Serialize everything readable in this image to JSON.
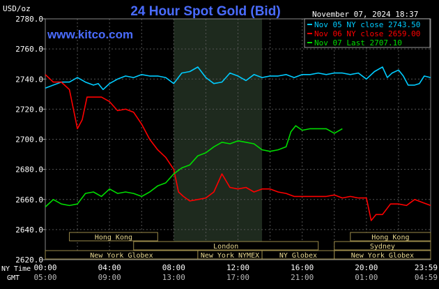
{
  "header": {
    "title": "24 Hour Spot Gold (Bid)",
    "datetime": "November 07, 2024 18:37",
    "unit_label": "USD/oz",
    "watermark": "www.kitco.com"
  },
  "legend": {
    "placement": "top-right",
    "entries": [
      {
        "label": "Nov 05 NY close 2743.50",
        "color": "#00ccff"
      },
      {
        "label": "Nov 06 NY close 2659.00",
        "color": "#ff0000"
      },
      {
        "label": "Nov 07 Last 2707.10",
        "color": "#00dd00"
      }
    ]
  },
  "sessions": {
    "rows": [
      [
        {
          "name": "Hong Kong",
          "start": 1.5,
          "end": 7.0
        },
        {
          "name": "Hong Kong",
          "start": 19.0,
          "end": 24.0
        }
      ],
      [
        {
          "name": "London",
          "start": 5.5,
          "end": 17.0
        },
        {
          "name": "Sydney",
          "start": 18.0,
          "end": 24.0
        }
      ],
      [
        {
          "name": "New York Globex",
          "start": 0.0,
          "end": 9.5
        },
        {
          "name": "New York NYMEX",
          "start": 9.5,
          "end": 13.5
        },
        {
          "name": "NY Globex",
          "start": 13.5,
          "end": 18.0
        },
        {
          "name": "New York Globex",
          "start": 18.0,
          "end": 24.0
        }
      ]
    ]
  },
  "axis_labels": {
    "x_row1_label": "NY Time",
    "x_row2_label": "GMT"
  },
  "colors": {
    "background": "#000000",
    "plot_area": "#000000",
    "grid": "#555555",
    "highlight": "#1e2a1e",
    "title": "#4a6cff",
    "watermark": "#4a6cff",
    "session_box": "#9a8a4a",
    "session_text": "#e8d890",
    "text": "#ffffff"
  },
  "chart_data": {
    "type": "line",
    "title": "24 Hour Spot Gold (Bid)",
    "ylabel": "USD/oz",
    "xlim": [
      0,
      24
    ],
    "ylim": [
      2620,
      2780
    ],
    "yticks": [
      "2620.0",
      "2640.0",
      "2660.0",
      "2680.0",
      "2700.0",
      "2720.0",
      "2740.0",
      "2760.0",
      "2780.0"
    ],
    "xticks_ny": [
      "00:00",
      "04:00",
      "08:00",
      "12:00",
      "16:00",
      "20:00",
      "23:59"
    ],
    "xticks_gmt": [
      "05:00",
      "09:00",
      "13:00",
      "17:00",
      "21:00",
      "01:00",
      "04:59"
    ],
    "highlight_range": [
      8.0,
      13.5
    ],
    "grid": true,
    "series": [
      {
        "name": "Nov 05 NY close 2743.50",
        "color": "#00ccff",
        "x": [
          0,
          0.5,
          1,
          1.5,
          2,
          2.5,
          3,
          3.3,
          3.6,
          4,
          4.5,
          5,
          5.5,
          6,
          6.5,
          7,
          7.5,
          8,
          8.5,
          9,
          9.5,
          10,
          10.5,
          11,
          11.5,
          12,
          12.5,
          13,
          13.5,
          14,
          14.5,
          15,
          15.5,
          16,
          16.5,
          17,
          17.5,
          18,
          18.5,
          19,
          19.5,
          20,
          20.5,
          21,
          21.3,
          21.6,
          22,
          22.3,
          22.6,
          23,
          23.3,
          23.6,
          24
        ],
        "y": [
          2734,
          2736,
          2738,
          2738,
          2741,
          2738,
          2736,
          2737,
          2733,
          2737,
          2740,
          2742,
          2741,
          2743,
          2742,
          2742,
          2741,
          2737,
          2744,
          2745,
          2748,
          2741,
          2737,
          2738,
          2744,
          2742,
          2739,
          2743,
          2741,
          2742,
          2742,
          2743,
          2741,
          2743,
          2743,
          2744,
          2743,
          2744,
          2744,
          2743,
          2744,
          2740,
          2745,
          2748,
          2741,
          2744,
          2746,
          2742,
          2736,
          2736,
          2737,
          2742,
          2741
        ]
      },
      {
        "name": "Nov 06 NY close 2659.00",
        "color": "#ff0000",
        "x": [
          0,
          0.5,
          1,
          1.5,
          2,
          2.3,
          2.6,
          3,
          3.5,
          4,
          4.5,
          5,
          5.5,
          6,
          6.5,
          7,
          7.5,
          8,
          8.3,
          8.6,
          9,
          9.5,
          10,
          10.5,
          11,
          11.5,
          12,
          12.5,
          13,
          13.5,
          14,
          14.5,
          15,
          15.5,
          16,
          16.5,
          17,
          17.5,
          18,
          18.5,
          19,
          19.5,
          20,
          20.3,
          20.6,
          21,
          21.5,
          22,
          22.5,
          23,
          23.5,
          24
        ],
        "y": [
          2743,
          2738,
          2738,
          2733,
          2707,
          2713,
          2728,
          2728,
          2728,
          2725,
          2719,
          2720,
          2718,
          2710,
          2700,
          2693,
          2688,
          2680,
          2665,
          2662,
          2659,
          2660,
          2661,
          2665,
          2677,
          2668,
          2667,
          2668,
          2665,
          2667,
          2667,
          2665,
          2664,
          2662,
          2662,
          2662,
          2662,
          2662,
          2663,
          2661,
          2662,
          2661,
          2661,
          2646,
          2650,
          2650,
          2657,
          2657,
          2656,
          2660,
          2658,
          2656
        ]
      },
      {
        "name": "Nov 07 Last 2707.10",
        "color": "#00dd00",
        "x": [
          0,
          0.5,
          1,
          1.5,
          2,
          2.5,
          3,
          3.5,
          4,
          4.5,
          5,
          5.5,
          6,
          6.5,
          7,
          7.5,
          8,
          8.5,
          9,
          9.5,
          10,
          10.5,
          11,
          11.5,
          12,
          12.5,
          13,
          13.5,
          14,
          14.5,
          15,
          15.3,
          15.6,
          16,
          16.5,
          17,
          17.5,
          18,
          18.5
        ],
        "y": [
          2655,
          2660,
          2657,
          2656,
          2657,
          2664,
          2665,
          2662,
          2667,
          2664,
          2665,
          2664,
          2662,
          2665,
          2669,
          2671,
          2677,
          2681,
          2683,
          2689,
          2691,
          2695,
          2698,
          2697,
          2699,
          2698,
          2697,
          2693,
          2692,
          2693,
          2695,
          2705,
          2709,
          2706,
          2707,
          2707,
          2707,
          2704,
          2707
        ]
      }
    ]
  }
}
